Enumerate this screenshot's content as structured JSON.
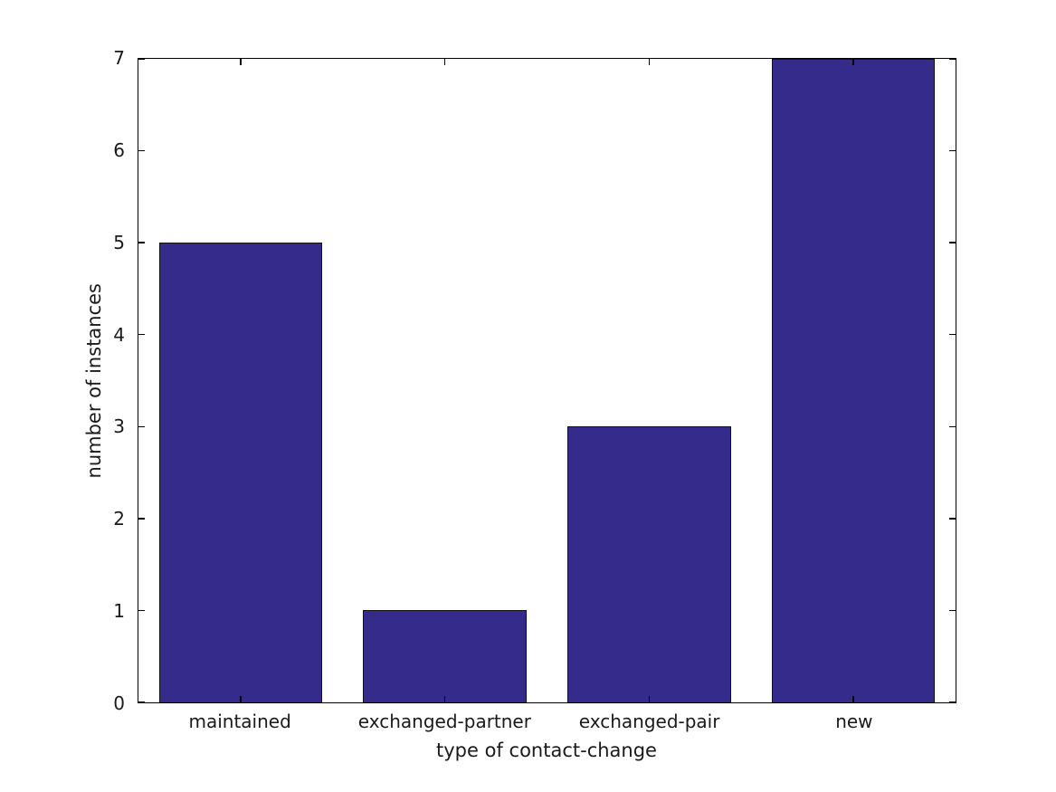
{
  "figure": {
    "background": "#ffffff",
    "text_color": "#1a1a1a",
    "spine_color": "#000000"
  },
  "chart_data": {
    "type": "bar",
    "title": "",
    "categories": [
      "maintained",
      "exchanged-partner",
      "exchanged-pair",
      "new"
    ],
    "values": [
      5,
      1,
      3,
      7
    ],
    "xlabel": "type of contact-change",
    "ylabel": "number of instances",
    "ylim": [
      0,
      7
    ],
    "yticks": [
      0,
      1,
      2,
      3,
      4,
      5,
      6,
      7
    ],
    "bar_color": "#352b8a",
    "bar_edge_color": "#111111",
    "bar_width_frac": 0.8,
    "grid": false,
    "legend_position": "none",
    "tick_direction": "in",
    "ticks_mirrored": true
  }
}
